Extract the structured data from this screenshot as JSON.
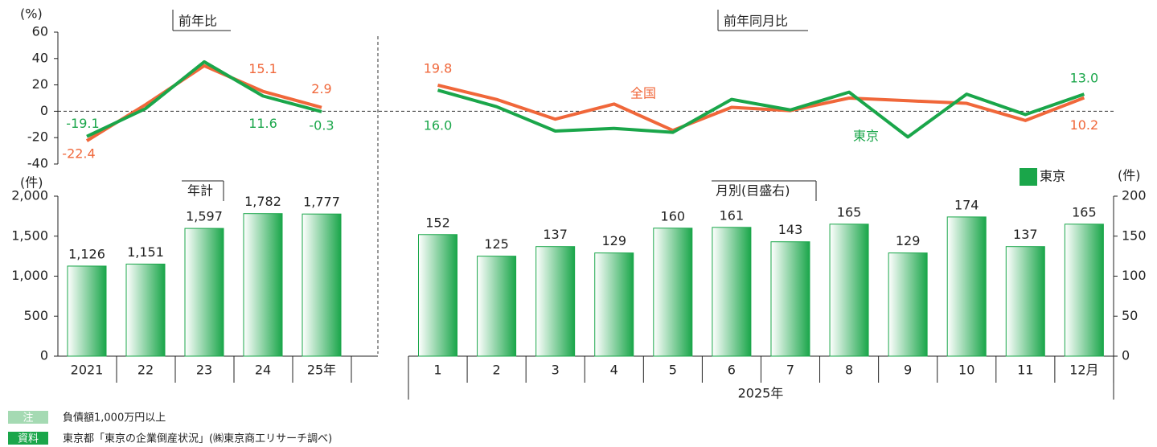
{
  "chart_data": [
    {
      "type": "line",
      "title": "前年比",
      "ylabel": "(%)",
      "ylim": [
        -40,
        60
      ],
      "yticks": [
        -40,
        -20,
        0,
        20,
        40,
        60
      ],
      "series": [
        {
          "color": "#f0673a",
          "values": [
            -22.4,
            5,
            34.5,
            15.1,
            2.9
          ],
          "value_labels": [
            "-22.4",
            null,
            null,
            "15.1",
            "2.9"
          ]
        },
        {
          "color": "#1aa64a",
          "values": [
            -19.1,
            2,
            37.5,
            11.6,
            -0.3
          ],
          "value_labels": [
            "-19.1",
            null,
            null,
            "11.6",
            "-0.3"
          ]
        }
      ]
    },
    {
      "type": "line",
      "title": "前年同月比",
      "ylim": [
        -40,
        60
      ],
      "series": [
        {
          "name": "全国",
          "color": "#f0673a",
          "values": [
            19.8,
            9,
            -6,
            5.5,
            -14.5,
            3,
            0.5,
            10,
            8,
            6,
            -7,
            10.2
          ],
          "value_labels": [
            "19.8",
            null,
            null,
            null,
            null,
            null,
            null,
            null,
            null,
            null,
            null,
            "10.2"
          ]
        },
        {
          "name": "東京",
          "color": "#1aa64a",
          "values": [
            16.0,
            3.5,
            -15,
            -13,
            -16,
            9,
            1,
            14.5,
            -19.5,
            13,
            -2.5,
            13.0
          ],
          "value_labels": [
            "16.0",
            null,
            null,
            null,
            null,
            null,
            null,
            null,
            null,
            null,
            null,
            "13.0"
          ]
        }
      ]
    },
    {
      "type": "bar",
      "title": "年計",
      "ylabel": "(件)",
      "categories": [
        "2021",
        "22",
        "23",
        "24",
        "25年"
      ],
      "series": [
        {
          "color": "#1aa64a",
          "values": [
            1126,
            1151,
            1597,
            1782,
            1777
          ],
          "value_labels": [
            "1,126",
            "1,151",
            "1,597",
            "1,782",
            "1,777"
          ]
        }
      ],
      "ylim": [
        0,
        2000
      ],
      "yticks": [
        0,
        500,
        {
          "value": 1000,
          "label": "1,000"
        },
        {
          "value": 1500,
          "label": "1,500"
        },
        {
          "value": 2000,
          "label": "2,000"
        }
      ]
    },
    {
      "type": "bar",
      "title": "月別(目盛右)",
      "y2label": "(件)",
      "xlabel": "2025年",
      "categories": [
        "1",
        "2",
        "3",
        "4",
        "5",
        "6",
        "7",
        "8",
        "9",
        "10",
        "11",
        "12月"
      ],
      "series": [
        {
          "name": "東京",
          "color": "#1aa64a",
          "axis": "y2",
          "values": [
            152,
            125,
            137,
            129,
            160,
            161,
            143,
            165,
            129,
            174,
            137,
            165
          ]
        }
      ],
      "y2lim": [
        0,
        200
      ],
      "y2ticks": [
        0,
        50,
        100,
        150,
        200
      ],
      "legend": "upper right"
    }
  ],
  "notes": [
    {
      "tag": "注",
      "text": "負債額1,000万円以上"
    },
    {
      "tag": "資料",
      "text": "東京都「東京の企業倒産状況」(㈱東京商工リサーチ調べ)"
    }
  ]
}
